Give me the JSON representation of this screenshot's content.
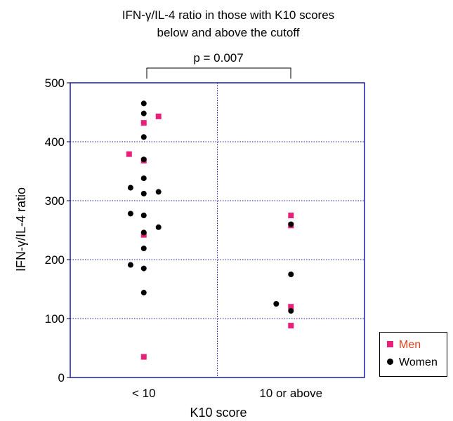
{
  "chart_data": {
    "type": "scatter",
    "title": [
      "IFN-γ/IL-4 ratio in those with K10 scores",
      "below and above the cutoff"
    ],
    "xlabel": "K10 score",
    "ylabel": "IFN-γ/IL-4 ratio",
    "categories": [
      "< 10",
      "10 or above"
    ],
    "ylim": [
      0,
      500
    ],
    "yticks": [
      0,
      100,
      200,
      300,
      400,
      500
    ],
    "grid": "dotted",
    "legend_position": "bottom-right-outside",
    "annotation": "p = 0.007",
    "series": [
      {
        "name": "Men",
        "marker": "square",
        "color": "#e8207a",
        "legend_text_color": "#e2401a",
        "points": [
          {
            "category": 0,
            "offset": 0.1,
            "y": 443
          },
          {
            "category": 0,
            "offset": 0,
            "y": 432
          },
          {
            "category": 0,
            "offset": -0.1,
            "y": 379
          },
          {
            "category": 0,
            "offset": 0,
            "y": 368
          },
          {
            "category": 0,
            "offset": 0,
            "y": 242
          },
          {
            "category": 0,
            "offset": 0,
            "y": 35
          },
          {
            "category": 1,
            "offset": 0,
            "y": 275
          },
          {
            "category": 1,
            "offset": 0,
            "y": 258
          },
          {
            "category": 1,
            "offset": 0,
            "y": 120
          },
          {
            "category": 1,
            "offset": 0,
            "y": 88
          }
        ]
      },
      {
        "name": "Women",
        "marker": "circle",
        "color": "#000000",
        "legend_text_color": "#000000",
        "points": [
          {
            "category": 0,
            "offset": 0,
            "y": 465
          },
          {
            "category": 0,
            "offset": 0,
            "y": 448
          },
          {
            "category": 0,
            "offset": 0,
            "y": 408
          },
          {
            "category": 0,
            "offset": 0,
            "y": 370
          },
          {
            "category": 0,
            "offset": 0,
            "y": 338
          },
          {
            "category": 0,
            "offset": -0.09,
            "y": 322
          },
          {
            "category": 0,
            "offset": 0.1,
            "y": 315
          },
          {
            "category": 0,
            "offset": 0,
            "y": 312
          },
          {
            "category": 0,
            "offset": -0.09,
            "y": 278
          },
          {
            "category": 0,
            "offset": 0,
            "y": 275
          },
          {
            "category": 0,
            "offset": 0.1,
            "y": 255
          },
          {
            "category": 0,
            "offset": 0,
            "y": 246
          },
          {
            "category": 0,
            "offset": 0,
            "y": 219
          },
          {
            "category": 0,
            "offset": -0.09,
            "y": 191
          },
          {
            "category": 0,
            "offset": 0,
            "y": 185
          },
          {
            "category": 0,
            "offset": 0,
            "y": 144
          },
          {
            "category": 1,
            "offset": 0,
            "y": 260
          },
          {
            "category": 1,
            "offset": 0,
            "y": 175
          },
          {
            "category": 1,
            "offset": -0.1,
            "y": 125
          },
          {
            "category": 1,
            "offset": 0,
            "y": 113
          }
        ]
      }
    ]
  }
}
